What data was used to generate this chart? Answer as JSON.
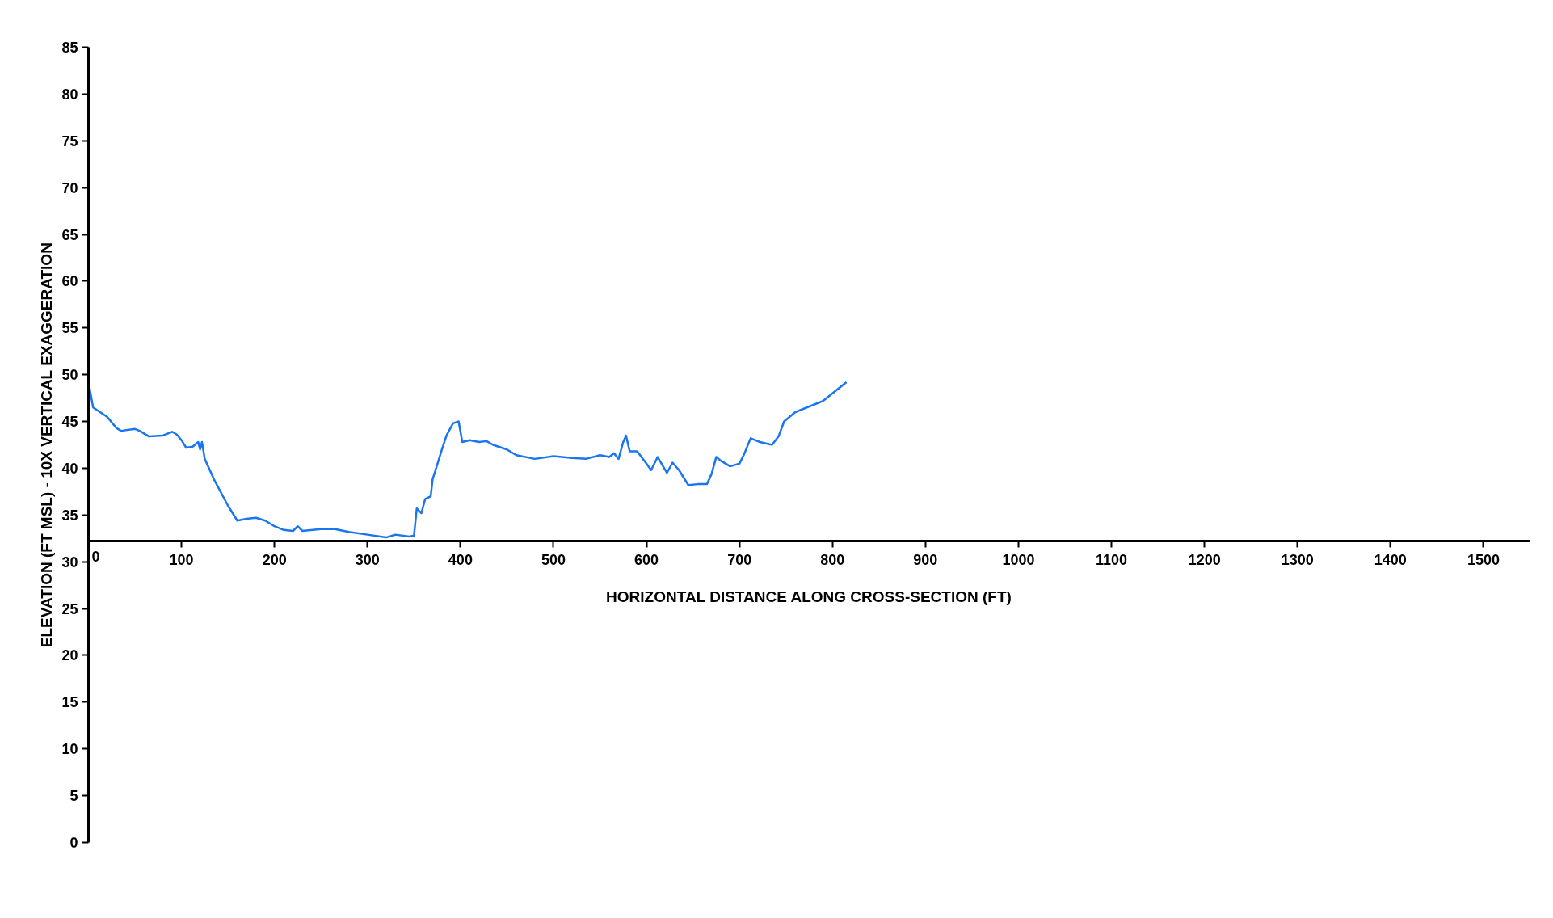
{
  "chart_data": {
    "type": "line",
    "xlabel": "HORIZONTAL DISTANCE ALONG CROSS-SECTION (FT)",
    "ylabel": "ELEVATION (FT MSL) - 10X VERTICAL EXAGGERATION",
    "x": [
      0,
      5,
      20,
      30,
      35,
      50,
      55,
      65,
      80,
      90,
      95,
      100,
      105,
      112,
      118,
      120,
      122,
      125,
      135,
      150,
      160,
      170,
      180,
      190,
      200,
      210,
      220,
      225,
      230,
      250,
      265,
      280,
      300,
      320,
      330,
      345,
      350,
      353,
      358,
      362,
      368,
      370,
      380,
      385,
      392,
      398,
      402,
      410,
      420,
      428,
      435,
      450,
      460,
      480,
      500,
      520,
      535,
      550,
      560,
      565,
      570,
      575,
      578,
      582,
      590,
      600,
      605,
      612,
      622,
      628,
      635,
      645,
      655,
      665,
      670,
      675,
      680,
      690,
      700,
      705,
      712,
      722,
      735,
      742,
      748,
      760,
      780,
      790,
      800,
      815
    ],
    "series": [
      {
        "color": "#1a75f0",
        "values": [
          49.2,
          46.5,
          45.5,
          44.3,
          44.0,
          44.2,
          44.0,
          43.4,
          43.5,
          43.9,
          43.6,
          43.0,
          42.2,
          42.3,
          42.8,
          42.0,
          42.8,
          41.0,
          38.8,
          36.0,
          34.4,
          34.6,
          34.7,
          34.4,
          33.8,
          33.4,
          33.3,
          33.8,
          33.3,
          33.5,
          33.5,
          33.2,
          32.9,
          32.6,
          32.9,
          32.7,
          32.8,
          35.7,
          35.2,
          36.7,
          37.0,
          38.8,
          42.0,
          43.5,
          44.8,
          45.0,
          42.8,
          43.0,
          42.8,
          42.9,
          42.5,
          42.0,
          41.4,
          41.0,
          41.3,
          41.1,
          41.0,
          41.4,
          41.2,
          41.6,
          41.0,
          42.8,
          43.5,
          41.8,
          41.8,
          40.5,
          39.8,
          41.2,
          39.5,
          40.6,
          39.8,
          38.2,
          38.3,
          38.3,
          39.4,
          41.2,
          40.8,
          40.2,
          40.5,
          41.5,
          43.2,
          42.8,
          42.5,
          43.4,
          45.0,
          46.0,
          46.8,
          47.2,
          48.0,
          49.2
        ]
      }
    ],
    "xlim": [
      0,
      1550
    ],
    "ylim": [
      0,
      85
    ],
    "xticks": [
      0,
      100,
      200,
      300,
      400,
      500,
      600,
      700,
      800,
      900,
      1000,
      1100,
      1200,
      1300,
      1400,
      1500
    ],
    "yticks": [
      0,
      5,
      10,
      15,
      20,
      25,
      30,
      35,
      40,
      45,
      50,
      55,
      60,
      65,
      70,
      75,
      80,
      85
    ],
    "grid": false,
    "marker": "none",
    "line_style": "solid"
  }
}
